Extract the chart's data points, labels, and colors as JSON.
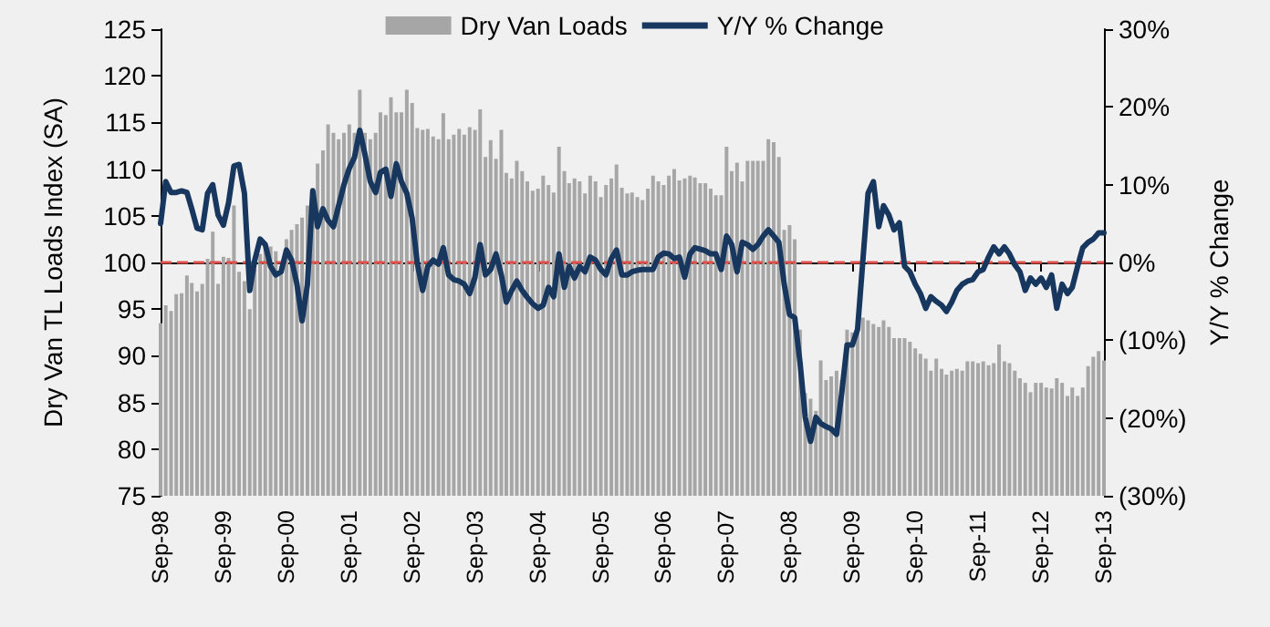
{
  "chart_data": {
    "type": "bar",
    "ylabel": "Dry Van TL Loads Index (SA)",
    "y2label": "Y/Y % Change",
    "x": [
      "1998-09",
      "1998-10",
      "1998-11",
      "1998-12",
      "1999-01",
      "1999-02",
      "1999-03",
      "1999-04",
      "1999-05",
      "1999-06",
      "1999-07",
      "1999-08",
      "1999-09",
      "1999-10",
      "1999-11",
      "1999-12",
      "2000-01",
      "2000-02",
      "2000-03",
      "2000-04",
      "2000-05",
      "2000-06",
      "2000-07",
      "2000-08",
      "2000-09",
      "2000-10",
      "2000-11",
      "2000-12",
      "2001-01",
      "2001-02",
      "2001-03",
      "2001-04",
      "2001-05",
      "2001-06",
      "2001-07",
      "2001-08",
      "2001-09",
      "2001-10",
      "2001-11",
      "2001-12",
      "2002-01",
      "2002-02",
      "2002-03",
      "2002-04",
      "2002-05",
      "2002-06",
      "2002-07",
      "2002-08",
      "2002-09",
      "2002-10",
      "2002-11",
      "2002-12",
      "2003-01",
      "2003-02",
      "2003-03",
      "2003-04",
      "2003-05",
      "2003-06",
      "2003-07",
      "2003-08",
      "2003-09",
      "2003-10",
      "2003-11",
      "2003-12",
      "2004-01",
      "2004-02",
      "2004-03",
      "2004-04",
      "2004-05",
      "2004-06",
      "2004-07",
      "2004-08",
      "2004-09",
      "2004-10",
      "2004-11",
      "2004-12",
      "2005-01",
      "2005-02",
      "2005-03",
      "2005-04",
      "2005-05",
      "2005-06",
      "2005-07",
      "2005-08",
      "2005-09",
      "2005-10",
      "2005-11",
      "2005-12",
      "2006-01",
      "2006-02",
      "2006-03",
      "2006-04",
      "2006-05",
      "2006-06",
      "2006-07",
      "2006-08",
      "2006-09",
      "2006-10",
      "2006-11",
      "2006-12",
      "2007-01",
      "2007-02",
      "2007-03",
      "2007-04",
      "2007-05",
      "2007-06",
      "2007-07",
      "2007-08",
      "2007-09",
      "2007-10",
      "2007-11",
      "2007-12",
      "2008-01",
      "2008-02",
      "2008-03",
      "2008-04",
      "2008-05",
      "2008-06",
      "2008-07",
      "2008-08",
      "2008-09",
      "2008-10",
      "2008-11",
      "2008-12",
      "2009-01",
      "2009-02",
      "2009-03",
      "2009-04",
      "2009-05",
      "2009-06",
      "2009-07",
      "2009-08",
      "2009-09",
      "2009-10",
      "2009-11",
      "2009-12",
      "2010-01",
      "2010-02",
      "2010-03",
      "2010-04",
      "2010-05",
      "2010-06",
      "2010-07",
      "2010-08",
      "2010-09",
      "2010-10",
      "2010-11",
      "2010-12",
      "2011-01",
      "2011-02",
      "2011-03",
      "2011-04",
      "2011-05",
      "2011-06",
      "2011-07",
      "2011-08",
      "2011-09",
      "2011-10",
      "2011-11",
      "2011-12",
      "2012-01",
      "2012-02",
      "2012-03",
      "2012-04",
      "2012-05",
      "2012-06",
      "2012-07",
      "2012-08",
      "2012-09",
      "2012-10",
      "2012-11",
      "2012-12",
      "2013-01",
      "2013-02",
      "2013-03",
      "2013-04",
      "2013-05",
      "2013-06",
      "2013-07",
      "2013-08",
      "2013-09"
    ],
    "series": [
      {
        "name": "Dry Van Loads",
        "color": "#a6a6a6",
        "values": [
          93.5,
          95.4,
          94.8,
          96.6,
          96.7,
          98.6,
          97.8,
          96.9,
          97.7,
          100.4,
          103.3,
          97.7,
          100.6,
          100.5,
          106.1,
          99,
          98,
          95,
          99.3,
          100.9,
          101.6,
          101.7,
          101.2,
          99.6,
          102.5,
          103.5,
          104.1,
          104.8,
          106.1,
          108,
          110.6,
          112,
          114.8,
          113.9,
          113.2,
          113.9,
          114.8,
          113.9,
          118.5,
          113.9,
          113.2,
          113.9,
          116.1,
          115.8,
          117.7,
          116.1,
          116.1,
          118.5,
          117.1,
          114.4,
          114.2,
          114.3,
          113.5,
          113.2,
          116,
          113.2,
          113.7,
          114.3,
          113.7,
          114.5,
          114.2,
          116.4,
          111.3,
          113.1,
          111.1,
          114.2,
          109.6,
          109,
          110.9,
          109.8,
          108.7,
          107.7,
          107.9,
          109.3,
          108.3,
          107.5,
          112.4,
          109.8,
          108.5,
          109,
          108.7,
          107.4,
          109.3,
          108.7,
          107,
          108.3,
          109,
          110.5,
          108,
          107.4,
          107.5,
          107,
          106.7,
          107.9,
          109.3,
          108.7,
          108.3,
          109.3,
          110,
          108.8,
          109,
          109.3,
          109.1,
          108.5,
          108.5,
          107.9,
          107.2,
          107.2,
          112.4,
          109.8,
          110.7,
          108.7,
          110.9,
          110.9,
          110.9,
          110.9,
          113.2,
          112.9,
          111.3,
          103.5,
          104,
          102.5,
          92.8,
          86,
          85.4,
          84.1,
          89.5,
          87.4,
          87.8,
          88.4,
          87.4,
          92.8,
          92.5,
          93.1,
          94.1,
          93.8,
          93.4,
          93.1,
          93.8,
          93.1,
          91.9,
          91.9,
          91.9,
          91.5,
          90.8,
          90.2,
          89.7,
          88.4,
          89.7,
          88.6,
          88,
          88.4,
          88.6,
          88.4,
          89.4,
          89.4,
          89.2,
          89.4,
          89,
          89.2,
          91.2,
          89.4,
          89.2,
          88.4,
          87.6,
          87.1,
          86.1,
          87.1,
          87.1,
          86.6,
          86.5,
          87.6,
          87.1,
          85.7,
          86.6,
          85.7,
          86.6,
          88.9,
          89.9,
          90.5,
          89.5
        ]
      },
      {
        "name": "Y/Y % Change",
        "type": "line",
        "axis": "y2",
        "color": "#17375e",
        "values": [
          5.0,
          10.4,
          9,
          9,
          9.2,
          9,
          6.9,
          4.4,
          4.2,
          8.9,
          10,
          6.1,
          4.8,
          7.7,
          12.4,
          12.6,
          8.9,
          -3.6,
          0.3,
          3,
          2.3,
          -0.5,
          -1.6,
          -1.2,
          1.6,
          0.3,
          -2.8,
          -7.5,
          -2.8,
          9.2,
          4.6,
          6.9,
          5.4,
          4.6,
          7.3,
          10,
          12.1,
          13.5,
          17,
          13.9,
          10.4,
          9,
          11.6,
          12,
          8.5,
          12.7,
          10.4,
          8.9,
          5.7,
          -0.1,
          -3.6,
          -0.5,
          0.3,
          -0.2,
          1.9,
          -1.6,
          -2.2,
          -2.4,
          -2.8,
          -4,
          -1.9,
          2.3,
          -1.6,
          -0.9,
          1.1,
          -1.6,
          -5.1,
          -3.6,
          -2.4,
          -3.6,
          -4.5,
          -5.3,
          -5.9,
          -5.5,
          -3.2,
          -4.4,
          1.1,
          -3.2,
          -0.5,
          -2,
          -0.5,
          -1.2,
          0.7,
          0.3,
          -0.9,
          -1.6,
          0.5,
          1.6,
          -1.6,
          -1.6,
          -1.2,
          -1,
          -0.9,
          -0.9,
          -0.9,
          0.7,
          1.2,
          1.1,
          0.5,
          0.7,
          -1.9,
          1.1,
          1.9,
          1.7,
          1.5,
          1.1,
          1.1,
          -0.9,
          3.4,
          2.3,
          -1.2,
          2.6,
          2.3,
          1.7,
          2.3,
          3.4,
          4.2,
          3.4,
          2.6,
          -2.8,
          -6.7,
          -7.1,
          -12.9,
          -19.9,
          -23,
          -19.9,
          -20.7,
          -21.1,
          -21.4,
          -22.1,
          -16.8,
          -10.6,
          -10.6,
          -8.6,
          0.3,
          8.9,
          10.4,
          4.6,
          7.3,
          6.1,
          4.2,
          5.1,
          -0.5,
          -1.2,
          -2.8,
          -4,
          -5.9,
          -4.4,
          -5,
          -5.5,
          -6.3,
          -5.1,
          -3.6,
          -2.8,
          -2.4,
          -2.2,
          -1.2,
          -0.9,
          0.7,
          2,
          1.1,
          2,
          1.1,
          -0.3,
          -1.2,
          -3.6,
          -2,
          -2.8,
          -2,
          -3.2,
          -1.6,
          -5.9,
          -2.8,
          -4,
          -3.2,
          -0.5,
          1.9,
          2.6,
          3,
          3.8,
          3.8
        ]
      }
    ],
    "xlim": [
      "1998-09",
      "2013-09"
    ],
    "xticks": [
      {
        "value": "1998-09",
        "label": "Sep-98"
      },
      {
        "value": "1999-09",
        "label": "Sep-99"
      },
      {
        "value": "2000-09",
        "label": "Sep-00"
      },
      {
        "value": "2001-09",
        "label": "Sep-01"
      },
      {
        "value": "2002-09",
        "label": "Sep-02"
      },
      {
        "value": "2003-09",
        "label": "Sep-03"
      },
      {
        "value": "2004-09",
        "label": "Sep-04"
      },
      {
        "value": "2005-09",
        "label": "Sep-05"
      },
      {
        "value": "2006-09",
        "label": "Sep-06"
      },
      {
        "value": "2007-09",
        "label": "Sep-07"
      },
      {
        "value": "2008-09",
        "label": "Sep-08"
      },
      {
        "value": "2009-09",
        "label": "Sep-09"
      },
      {
        "value": "2010-09",
        "label": "Sep-10"
      },
      {
        "value": "2011-09",
        "label": "Sep-11"
      },
      {
        "value": "2012-09",
        "label": "Sep-12"
      },
      {
        "value": "2013-09",
        "label": "Sep-13"
      }
    ],
    "ylim": [
      75,
      125
    ],
    "yticks": [
      75,
      80,
      85,
      90,
      95,
      100,
      105,
      110,
      115,
      120,
      125
    ],
    "y2lim": [
      -30,
      30
    ],
    "y2ticks": [
      {
        "value": -30,
        "label": "(30%)"
      },
      {
        "value": -20,
        "label": "(20%)"
      },
      {
        "value": -10,
        "label": "(10%)"
      },
      {
        "value": 0,
        "label": "0%"
      },
      {
        "value": 10,
        "label": "10%"
      },
      {
        "value": 20,
        "label": "20%"
      },
      {
        "value": 30,
        "label": "30%"
      }
    ],
    "ref_lines": [
      {
        "axis": "y2",
        "value": 0,
        "color": "#e0504a",
        "line_style": "dashed"
      }
    ],
    "grid": false,
    "legend": "top",
    "marker": "none",
    "line_style": "solid"
  }
}
